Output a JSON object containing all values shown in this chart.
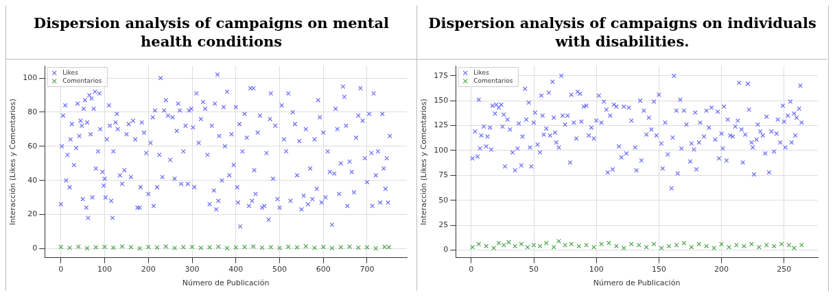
{
  "chart_data": [
    {
      "type": "scatter",
      "title": "Dispersion analysis of campaigns on mental health conditions",
      "xlabel": "Número de Publicación",
      "ylabel": "Interacción (Likes y Comentarios)",
      "xlim": [
        -37,
        791
      ],
      "ylim": [
        -5.3,
        107
      ],
      "xticks": [
        0,
        100,
        200,
        300,
        400,
        500,
        600,
        700
      ],
      "yticks": [
        0,
        20,
        40,
        60,
        80,
        100
      ],
      "grid": true,
      "legend": "top left",
      "marker": "cross",
      "series": [
        {
          "name": "Likes",
          "color": "#6a6af5",
          "x": [
            0,
            2,
            5,
            10,
            12,
            15,
            20,
            22,
            25,
            30,
            35,
            38,
            42,
            45,
            48,
            50,
            52,
            55,
            58,
            60,
            62,
            65,
            68,
            70,
            72,
            75,
            78,
            80,
            85,
            88,
            90,
            95,
            98,
            100,
            102,
            105,
            110,
            112,
            115,
            118,
            120,
            125,
            128,
            130,
            135,
            140,
            145,
            150,
            155,
            160,
            165,
            170,
            175,
            180,
            182,
            185,
            190,
            195,
            200,
            205,
            210,
            212,
            215,
            220,
            225,
            228,
            232,
            236,
            240,
            245,
            250,
            255,
            260,
            265,
            268,
            272,
            275,
            280,
            285,
            290,
            293,
            298,
            302,
            305,
            310,
            315,
            320,
            325,
            330,
            335,
            340,
            345,
            350,
            352,
            355,
            358,
            360,
            362,
            368,
            372,
            375,
            380,
            385,
            390,
            395,
            400,
            403,
            405,
            408,
            410,
            415,
            420,
            425,
            430,
            433,
            437,
            440,
            442,
            445,
            450,
            455,
            460,
            465,
            470,
            475,
            478,
            480,
            485,
            490,
            495,
            500,
            505,
            510,
            515,
            520,
            525,
            530,
            535,
            540,
            545,
            550,
            555,
            560,
            565,
            570,
            575,
            580,
            585,
            588,
            592,
            596,
            600,
            605,
            610,
            615,
            620,
            625,
            628,
            632,
            636,
            640,
            645,
            648,
            652,
            655,
            660,
            665,
            670,
            675,
            680,
            685,
            690,
            695,
            700,
            705,
            710,
            712,
            715,
            720,
            725,
            730,
            735,
            738,
            742,
            745,
            748,
            752
          ],
          "values": [
            26,
            60,
            78,
            84,
            40,
            55,
            36,
            64,
            73,
            49,
            59,
            85,
            66,
            75,
            72,
            29,
            82,
            87,
            24,
            74,
            18,
            90,
            67,
            88,
            30,
            82,
            92,
            47,
            57,
            91,
            70,
            45,
            37,
            41,
            30,
            64,
            84,
            72,
            28,
            18,
            57,
            74,
            79,
            70,
            43,
            38,
            46,
            67,
            73,
            42,
            75,
            64,
            24,
            24,
            36,
            74,
            68,
            56,
            32,
            62,
            77,
            25,
            81,
            36,
            55,
            100,
            42,
            81,
            87,
            78,
            52,
            77,
            41,
            69,
            85,
            81,
            38,
            57,
            72,
            38,
            81,
            82,
            71,
            36,
            91,
            62,
            76,
            86,
            82,
            55,
            26,
            72,
            34,
            85,
            23,
            102,
            28,
            66,
            40,
            83,
            60,
            92,
            43,
            67,
            49,
            83,
            36,
            27,
            73,
            13,
            57,
            79,
            65,
            25,
            94,
            28,
            94,
            46,
            32,
            68,
            78,
            24,
            25,
            56,
            17,
            76,
            91,
            41,
            72,
            29,
            24,
            84,
            64,
            57,
            91,
            28,
            80,
            73,
            43,
            63,
            23,
            31,
            70,
            26,
            47,
            29,
            64,
            35,
            87,
            77,
            27,
            68,
            30,
            57,
            45,
            14,
            44,
            82,
            70,
            32,
            50,
            95,
            89,
            72,
            25,
            51,
            45,
            33,
            65,
            78,
            94,
            75,
            53,
            39,
            79,
            56,
            25,
            91,
            43,
            57,
            27,
            79,
            47,
            35,
            53,
            27,
            66
          ]
        },
        {
          "name": "Comentarios",
          "color": "#4ca64c",
          "x": [
            0,
            20,
            40,
            60,
            80,
            100,
            120,
            140,
            160,
            180,
            200,
            220,
            240,
            260,
            280,
            300,
            320,
            340,
            360,
            380,
            400,
            420,
            440,
            460,
            480,
            500,
            520,
            540,
            560,
            580,
            600,
            620,
            640,
            660,
            680,
            700,
            720,
            740,
            750
          ],
          "values": [
            1,
            0.5,
            1.2,
            0.3,
            0.8,
            1.1,
            0.6,
            1.4,
            0.9,
            0.2,
            1,
            0.7,
            1.3,
            0.4,
            0.9,
            1.1,
            0.5,
            0.8,
            1.2,
            0.3,
            0.7,
            1,
            1.3,
            0.6,
            0.9,
            0.4,
            1.1,
            0.8,
            1.4,
            0.5,
            1,
            0.3,
            0.9,
            1.2,
            0.6,
            0.8,
            0.2,
            1.1,
            0.9
          ]
        }
      ]
    },
    {
      "type": "scatter",
      "title": "Dispersion analysis of campaigns on individuals with disabilities.",
      "xlabel": "Número de Publicación",
      "ylabel": "Interacción (Likes y Comentarios)",
      "xlim": [
        -12.4,
        277
      ],
      "ylim": [
        -7.6,
        184.7
      ],
      "xticks": [
        0,
        50,
        100,
        150,
        200,
        250
      ],
      "yticks": [
        0,
        25,
        50,
        75,
        100,
        125,
        150,
        175
      ],
      "grid": true,
      "legend": "top left",
      "marker": "cross",
      "series": [
        {
          "name": "Likes",
          "color": "#6a6af5",
          "x": [
            1,
            3,
            5,
            6,
            7,
            8,
            10,
            12,
            13,
            15,
            16,
            17,
            19,
            20,
            22,
            24,
            25,
            26,
            27,
            29,
            31,
            33,
            35,
            37,
            38,
            40,
            41,
            43,
            44,
            46,
            47,
            48,
            50,
            51,
            53,
            55,
            56,
            57,
            58,
            60,
            62,
            63,
            65,
            66,
            67,
            68,
            70,
            72,
            73,
            75,
            77,
            79,
            80,
            82,
            84,
            85,
            87,
            88,
            90,
            92,
            94,
            96,
            98,
            100,
            102,
            104,
            106,
            108,
            109,
            111,
            113,
            114,
            116,
            118,
            120,
            122,
            124,
            126,
            128,
            131,
            132,
            135,
            136,
            138,
            140,
            142,
            144,
            146,
            148,
            150,
            152,
            153,
            155,
            157,
            160,
            161,
            162,
            164,
            165,
            167,
            168,
            170,
            172,
            175,
            176,
            178,
            179,
            180,
            182,
            183,
            186,
            188,
            190,
            192,
            195,
            197,
            198,
            200,
            201,
            202,
            204,
            205,
            207,
            209,
            211,
            213,
            214,
            216,
            217,
            219,
            221,
            222,
            224,
            225,
            226,
            228,
            229,
            231,
            233,
            235,
            236,
            238,
            240,
            242,
            244,
            245,
            247,
            249,
            250,
            251,
            253,
            255,
            256,
            258,
            259,
            260,
            262,
            263,
            264
          ],
          "values": [
            92,
            119,
            94,
            151,
            102,
            115,
            124,
            104,
            114,
            123,
            101,
            145,
            137,
            146,
            143,
            146,
            124,
            136,
            84,
            131,
            121,
            98,
            80,
            102,
            127,
            85,
            114,
            162,
            131,
            148,
            103,
            84,
            128,
            138,
            106,
            98,
            155,
            135,
            116,
            122,
            158,
            115,
            169,
            133,
            118,
            108,
            103,
            175,
            135,
            126,
            135,
            88,
            156,
            128,
            112,
            159,
            157,
            129,
            144,
            145,
            115,
            123,
            112,
            130,
            155,
            128,
            149,
            141,
            78,
            135,
            81,
            146,
            144,
            104,
            93,
            144,
            97,
            143,
            130,
            103,
            80,
            150,
            90,
            140,
            116,
            133,
            121,
            149,
            115,
            156,
            107,
            82,
            128,
            96,
            62,
            113,
            175,
            140,
            77,
            151,
            102,
            140,
            126,
            89,
            107,
            101,
            138,
            81,
            108,
            128,
            114,
            140,
            123,
            143,
            111,
            139,
            92,
            117,
            102,
            144,
            90,
            131,
            115,
            114,
            124,
            130,
            168,
            121,
            88,
            116,
            167,
            141,
            108,
            103,
            76,
            111,
            126,
            119,
            115,
            97,
            134,
            78,
            119,
            99,
            117,
            131,
            108,
            145,
            129,
            103,
            135,
            149,
            108,
            137,
            115,
            133,
            142,
            165,
            128
          ]
        },
        {
          "name": "Comentarios",
          "color": "#4ca64c",
          "x": [
            1,
            6,
            12,
            18,
            22,
            26,
            30,
            35,
            40,
            45,
            50,
            55,
            60,
            66,
            70,
            75,
            80,
            86,
            92,
            98,
            104,
            110,
            116,
            122,
            128,
            134,
            140,
            146,
            152,
            158,
            164,
            170,
            176,
            182,
            188,
            194,
            200,
            206,
            212,
            218,
            224,
            230,
            236,
            242,
            248,
            254,
            258,
            264
          ],
          "values": [
            3,
            6,
            4,
            2,
            7,
            5,
            8,
            4,
            6,
            3,
            5,
            4,
            7,
            3,
            9,
            5,
            6,
            4,
            5,
            3,
            6,
            7,
            4,
            2,
            6,
            5,
            3,
            6,
            2,
            4,
            5,
            7,
            3,
            6,
            4,
            2,
            6,
            3,
            5,
            4,
            6,
            3,
            5,
            4,
            6,
            5,
            2,
            5
          ]
        }
      ]
    }
  ]
}
